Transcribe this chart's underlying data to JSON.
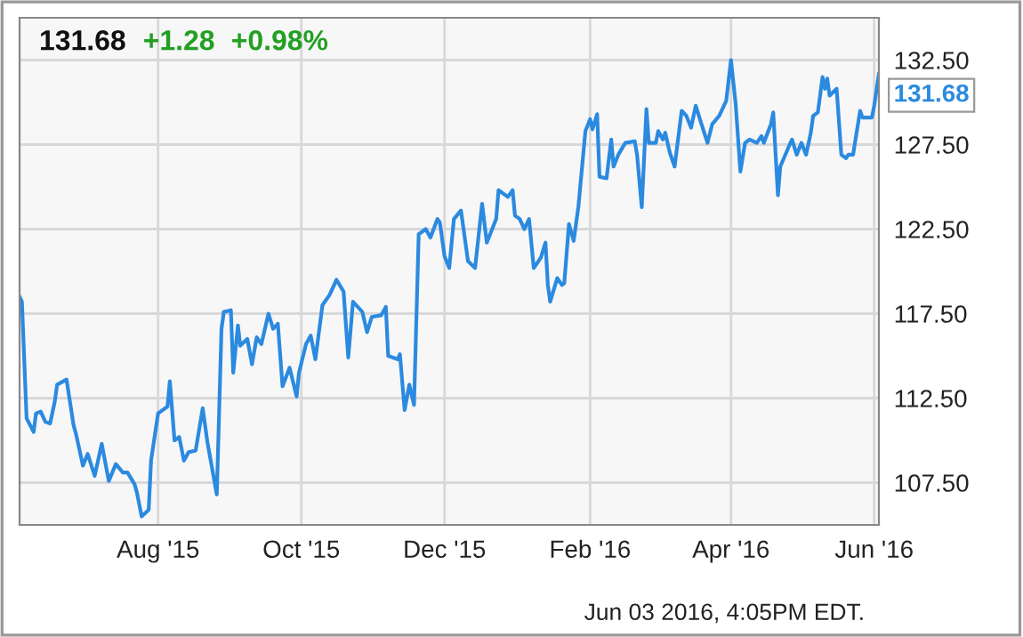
{
  "chart_data": {
    "type": "line",
    "x": [
      "2015-06-03",
      "2015-06-04",
      "2015-06-06",
      "2015-06-09",
      "2015-06-10",
      "2015-06-12",
      "2015-06-14",
      "2015-06-16",
      "2015-06-18",
      "2015-06-19",
      "2015-06-23",
      "2015-06-26",
      "2015-06-27",
      "2015-06-30",
      "2015-07-02",
      "2015-07-05",
      "2015-07-08",
      "2015-07-11",
      "2015-07-14",
      "2015-07-17",
      "2015-07-19",
      "2015-07-22",
      "2015-07-23",
      "2015-07-25",
      "2015-07-28",
      "2015-07-29",
      "2015-08-01",
      "2015-08-05",
      "2015-08-06",
      "2015-08-08",
      "2015-08-10",
      "2015-08-12",
      "2015-08-14",
      "2015-08-17",
      "2015-08-20",
      "2015-08-22",
      "2015-08-26",
      "2015-08-28",
      "2015-08-29",
      "2015-09-01",
      "2015-09-02",
      "2015-09-04",
      "2015-09-05",
      "2015-09-08",
      "2015-09-10",
      "2015-09-12",
      "2015-09-14",
      "2015-09-17",
      "2015-09-19",
      "2015-09-21",
      "2015-09-23",
      "2015-09-26",
      "2015-09-29",
      "2015-09-30",
      "2015-10-03",
      "2015-10-05",
      "2015-10-07",
      "2015-10-10",
      "2015-10-13",
      "2015-10-16",
      "2015-10-19",
      "2015-10-21",
      "2015-10-23",
      "2015-10-27",
      "2015-10-29",
      "2015-10-31",
      "2015-11-04",
      "2015-11-06",
      "2015-11-07",
      "2015-11-11",
      "2015-11-12",
      "2015-11-14",
      "2015-11-16",
      "2015-11-18",
      "2015-11-20",
      "2015-11-23",
      "2015-11-25",
      "2015-11-28",
      "2015-11-29",
      "2015-12-01",
      "2015-12-03",
      "2015-12-05",
      "2015-12-08",
      "2015-12-11",
      "2015-12-14",
      "2015-12-17",
      "2015-12-19",
      "2015-12-23",
      "2015-12-24",
      "2015-12-28",
      "2015-12-30",
      "2015-12-31",
      "2016-01-02",
      "2016-01-04",
      "2016-01-06",
      "2016-01-08",
      "2016-01-11",
      "2016-01-13",
      "2016-01-14",
      "2016-01-15",
      "2016-01-18",
      "2016-01-20",
      "2016-01-21",
      "2016-01-23",
      "2016-01-25",
      "2016-01-27",
      "2016-01-30",
      "2016-02-01",
      "2016-02-02",
      "2016-02-04",
      "2016-02-05",
      "2016-02-08",
      "2016-02-10",
      "2016-02-11",
      "2016-02-13",
      "2016-02-16",
      "2016-02-20",
      "2016-02-21",
      "2016-02-23",
      "2016-02-25",
      "2016-02-26",
      "2016-02-29",
      "2016-03-01",
      "2016-03-03",
      "2016-03-04",
      "2016-03-06",
      "2016-03-08",
      "2016-03-11",
      "2016-03-13",
      "2016-03-15",
      "2016-03-17",
      "2016-03-19",
      "2016-03-22",
      "2016-03-24",
      "2016-03-27",
      "2016-03-30",
      "2016-04-01",
      "2016-04-03",
      "2016-04-05",
      "2016-04-07",
      "2016-04-09",
      "2016-04-12",
      "2016-04-14",
      "2016-04-15",
      "2016-04-18",
      "2016-04-19",
      "2016-04-21",
      "2016-04-22",
      "2016-04-26",
      "2016-04-27",
      "2016-04-29",
      "2016-05-01",
      "2016-05-03",
      "2016-05-05",
      "2016-05-06",
      "2016-05-08",
      "2016-05-10",
      "2016-05-11",
      "2016-05-12",
      "2016-05-13",
      "2016-05-16",
      "2016-05-18",
      "2016-05-20",
      "2016-05-21",
      "2016-05-23",
      "2016-05-26",
      "2016-05-27",
      "2016-05-31",
      "2016-06-01",
      "2016-06-03"
    ],
    "series": [
      {
        "color": "#2b8ae0",
        "values": [
          118.5,
          118.2,
          111.3,
          110.5,
          111.6,
          111.7,
          111.1,
          111.0,
          112.3,
          113.3,
          113.6,
          110.9,
          110.4,
          108.5,
          109.2,
          107.9,
          109.8,
          107.6,
          108.6,
          108.1,
          108.1,
          107.4,
          106.9,
          105.5,
          105.9,
          108.8,
          111.6,
          112.0,
          113.5,
          110.0,
          110.2,
          108.8,
          109.3,
          109.4,
          111.9,
          109.9,
          106.8,
          116.6,
          117.6,
          117.7,
          114.0,
          116.8,
          115.6,
          116.0,
          114.5,
          116.1,
          115.7,
          117.5,
          116.6,
          116.9,
          113.2,
          114.3,
          112.6,
          114.0,
          115.7,
          116.2,
          114.8,
          118.0,
          118.6,
          119.5,
          118.8,
          114.9,
          118.2,
          117.6,
          116.4,
          117.3,
          117.4,
          117.9,
          115.0,
          114.8,
          115.1,
          111.8,
          113.3,
          112.1,
          122.2,
          122.5,
          122.0,
          123.1,
          122.9,
          120.9,
          120.2,
          123.1,
          123.6,
          120.6,
          120.2,
          124.0,
          121.7,
          123.1,
          124.8,
          124.4,
          124.8,
          123.3,
          123.1,
          122.5,
          123.1,
          120.2,
          120.8,
          121.7,
          119.2,
          118.2,
          119.6,
          119.2,
          119.3,
          122.8,
          121.8,
          123.8,
          128.3,
          129.0,
          128.4,
          129.3,
          125.6,
          125.5,
          127.8,
          126.2,
          126.9,
          127.6,
          127.7,
          126.9,
          123.8,
          129.6,
          127.6,
          127.6,
          128.3,
          127.8,
          128.2,
          127.0,
          126.2,
          129.5,
          129.2,
          128.5,
          129.8,
          128.9,
          127.6,
          128.7,
          129.2,
          130.1,
          132.5,
          129.9,
          125.9,
          127.6,
          127.8,
          127.6,
          128.0,
          127.6,
          128.7,
          129.4,
          124.5,
          126.2,
          127.5,
          127.8,
          126.9,
          127.6,
          126.9,
          128.2,
          129.2,
          129.4,
          131.5,
          130.8,
          131.4,
          130.4,
          130.8,
          126.9,
          126.7,
          126.9,
          126.9,
          129.5,
          129.1,
          129.1,
          129.8,
          131.68
        ]
      }
    ],
    "xlim": [
      "2015-06-03",
      "2016-06-03"
    ],
    "xticks": [
      {
        "value": "2015-08-01",
        "label": "Aug '15"
      },
      {
        "value": "2015-10-01",
        "label": "Oct '15"
      },
      {
        "value": "2015-12-01",
        "label": "Dec '15"
      },
      {
        "value": "2016-02-01",
        "label": "Feb '16"
      },
      {
        "value": "2016-04-01",
        "label": "Apr '16"
      },
      {
        "value": "2016-06-01",
        "label": "Jun '16"
      }
    ],
    "ylim": [
      105,
      135
    ],
    "yticks": [
      {
        "value": 107.5,
        "label": "107.50"
      },
      {
        "value": 112.5,
        "label": "112.50"
      },
      {
        "value": 117.5,
        "label": "117.50"
      },
      {
        "value": 122.5,
        "label": "122.50"
      },
      {
        "value": 127.5,
        "label": "127.50"
      },
      {
        "value": 132.5,
        "label": "132.50"
      }
    ],
    "grid": true,
    "legend": false,
    "marker": "none",
    "line_style": "solid",
    "annotations": [
      "131.68",
      "+1.28",
      "+0.98%",
      {
        "text": "131.68",
        "x": "2016-06-03",
        "y": 131.68
      },
      "Jun 03 2016, 4:05PM EDT."
    ]
  }
}
